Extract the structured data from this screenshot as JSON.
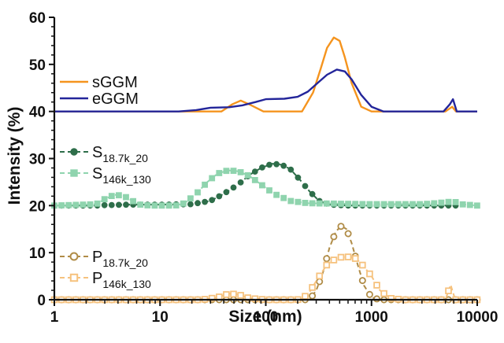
{
  "chart_data": {
    "type": "line",
    "xlabel": "Size (nm)",
    "ylabel": "Intensity (%)",
    "xscale": "log",
    "xlim": [
      1,
      10000
    ],
    "ylim": [
      0,
      60
    ],
    "x_ticks": [
      "1",
      "10",
      "100",
      "1000",
      "10000"
    ],
    "y_ticks": [
      "0",
      "10",
      "20",
      "30",
      "40",
      "50",
      "60"
    ],
    "grid": false,
    "legend_placement": "left",
    "series": [
      {
        "name": "sGGM",
        "color": "#f5941e",
        "style": "line",
        "group": 1,
        "points": [
          [
            1,
            40
          ],
          [
            20,
            40
          ],
          [
            38,
            40
          ],
          [
            48,
            41.5
          ],
          [
            58,
            42.3
          ],
          [
            70,
            41.5
          ],
          [
            95,
            40
          ],
          [
            150,
            40
          ],
          [
            220,
            40
          ],
          [
            280,
            44
          ],
          [
            330,
            49
          ],
          [
            380,
            53.5
          ],
          [
            440,
            55.7
          ],
          [
            500,
            55
          ],
          [
            560,
            51.5
          ],
          [
            650,
            46
          ],
          [
            800,
            41
          ],
          [
            1000,
            40
          ],
          [
            1500,
            40
          ],
          [
            5000,
            40
          ],
          [
            5800,
            41
          ],
          [
            6300,
            40
          ],
          [
            10000,
            40
          ]
        ]
      },
      {
        "name": "eGGM",
        "color": "#23259a",
        "style": "line",
        "group": 1,
        "points": [
          [
            1,
            40
          ],
          [
            15,
            40
          ],
          [
            22,
            40.3
          ],
          [
            30,
            40.8
          ],
          [
            45,
            40.9
          ],
          [
            60,
            41.3
          ],
          [
            80,
            42
          ],
          [
            100,
            42.6
          ],
          [
            150,
            42.7
          ],
          [
            200,
            43.1
          ],
          [
            250,
            44.2
          ],
          [
            300,
            45.8
          ],
          [
            380,
            47.8
          ],
          [
            470,
            48.9
          ],
          [
            560,
            48.5
          ],
          [
            650,
            46.8
          ],
          [
            800,
            43.5
          ],
          [
            1000,
            41
          ],
          [
            1300,
            40
          ],
          [
            4800,
            40
          ],
          [
            5500,
            41.5
          ],
          [
            5900,
            42.6
          ],
          [
            6400,
            40
          ],
          [
            10000,
            40
          ]
        ]
      },
      {
        "name": "S",
        "name_sub": "18.7k_20",
        "color": "#2e6e4a",
        "style": "circle-dash",
        "group": 2,
        "points": [
          [
            1,
            20
          ],
          [
            2.5,
            20
          ],
          [
            3,
            20.1
          ],
          [
            5,
            20.2
          ],
          [
            10,
            20.2
          ],
          [
            20,
            20.3
          ],
          [
            30,
            21
          ],
          [
            40,
            22.5
          ],
          [
            55,
            24.5
          ],
          [
            70,
            26.5
          ],
          [
            90,
            28
          ],
          [
            115,
            28.9
          ],
          [
            140,
            28.7
          ],
          [
            170,
            27.8
          ],
          [
            210,
            25.5
          ],
          [
            260,
            23
          ],
          [
            320,
            21
          ],
          [
            400,
            20.2
          ],
          [
            600,
            20
          ],
          [
            1000,
            20
          ],
          [
            3000,
            20
          ],
          [
            5800,
            20
          ],
          [
            6500,
            20
          ]
        ]
      },
      {
        "name": "S",
        "name_sub": "146k_130",
        "color": "#8fd4ae",
        "style": "square-dash",
        "group": 2,
        "points": [
          [
            1,
            20
          ],
          [
            2.5,
            20.3
          ],
          [
            3,
            21.4
          ],
          [
            3.7,
            22.3
          ],
          [
            4.5,
            22.1
          ],
          [
            5.5,
            21
          ],
          [
            6.5,
            20.2
          ],
          [
            8,
            20
          ],
          [
            14,
            20
          ],
          [
            17,
            20.5
          ],
          [
            22,
            22.5
          ],
          [
            28,
            25
          ],
          [
            35,
            26.8
          ],
          [
            44,
            27.5
          ],
          [
            55,
            27.3
          ],
          [
            70,
            26.3
          ],
          [
            90,
            24.5
          ],
          [
            120,
            22.5
          ],
          [
            170,
            21
          ],
          [
            250,
            20.5
          ],
          [
            500,
            20.4
          ],
          [
            1000,
            20.3
          ],
          [
            2000,
            20.3
          ],
          [
            3000,
            20.3
          ],
          [
            4500,
            20.6
          ],
          [
            6000,
            20.9
          ],
          [
            7000,
            20.3
          ],
          [
            10000,
            20
          ]
        ]
      },
      {
        "name": "P",
        "name_sub": "18.7k_20",
        "color": "#b08c47",
        "style": "circle-dash",
        "group": 3,
        "points": [
          [
            1,
            0
          ],
          [
            200,
            0
          ],
          [
            260,
            0
          ],
          [
            300,
            2
          ],
          [
            350,
            6
          ],
          [
            400,
            11
          ],
          [
            460,
            14.5
          ],
          [
            520,
            15.7
          ],
          [
            580,
            15
          ],
          [
            650,
            12
          ],
          [
            750,
            7
          ],
          [
            850,
            3
          ],
          [
            1000,
            0.5
          ],
          [
            1200,
            0
          ],
          [
            10000,
            0
          ]
        ]
      },
      {
        "name": "P",
        "name_sub": "146k_130",
        "color": "#f6c27e",
        "style": "square-dash",
        "group": 3,
        "points": [
          [
            1,
            0
          ],
          [
            25,
            0
          ],
          [
            35,
            0.5
          ],
          [
            45,
            1.3
          ],
          [
            55,
            1.1
          ],
          [
            70,
            0.3
          ],
          [
            100,
            0
          ],
          [
            200,
            0
          ],
          [
            250,
            1
          ],
          [
            300,
            4
          ],
          [
            380,
            7.5
          ],
          [
            480,
            9
          ],
          [
            600,
            9.1
          ],
          [
            720,
            8.7
          ],
          [
            850,
            7
          ],
          [
            1000,
            5
          ],
          [
            1200,
            2
          ],
          [
            1500,
            0.3
          ],
          [
            2000,
            0
          ],
          [
            5000,
            0
          ],
          [
            5600,
            3.2
          ],
          [
            6200,
            0
          ],
          [
            10000,
            0
          ]
        ]
      }
    ]
  }
}
